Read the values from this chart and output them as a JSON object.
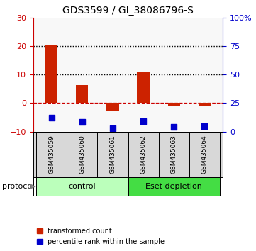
{
  "title": "GDS3599 / GI_38086796-S",
  "samples": [
    "GSM435059",
    "GSM435060",
    "GSM435061",
    "GSM435062",
    "GSM435063",
    "GSM435064"
  ],
  "transformed_count": [
    20.3,
    6.2,
    -3.0,
    11.0,
    -1.0,
    -1.2
  ],
  "percentile_rank": [
    12.0,
    8.2,
    3.0,
    9.0,
    4.2,
    4.8
  ],
  "left_ylim": [
    -10,
    30
  ],
  "right_ylim": [
    0,
    100
  ],
  "left_yticks": [
    -10,
    0,
    10,
    20,
    30
  ],
  "right_yticks": [
    0,
    25,
    50,
    75,
    100
  ],
  "right_yticklabels": [
    "0",
    "25",
    "50",
    "75",
    "100%"
  ],
  "bar_color": "#cc2200",
  "square_color": "#0000cc",
  "bar_width": 0.4,
  "groups": [
    {
      "label": "control",
      "samples": [
        0,
        1,
        2
      ],
      "color": "#bbffbb"
    },
    {
      "label": "Eset depletion",
      "samples": [
        3,
        4,
        5
      ],
      "color": "#44dd44"
    }
  ],
  "group_label": "protocol",
  "legend_items": [
    {
      "label": "transformed count",
      "color": "#cc2200"
    },
    {
      "label": "percentile rank within the sample",
      "color": "#0000cc"
    }
  ],
  "tick_color_left": "#cc0000",
  "tick_color_right": "#0000cc",
  "grid_area_bg": "#f8f8f8"
}
